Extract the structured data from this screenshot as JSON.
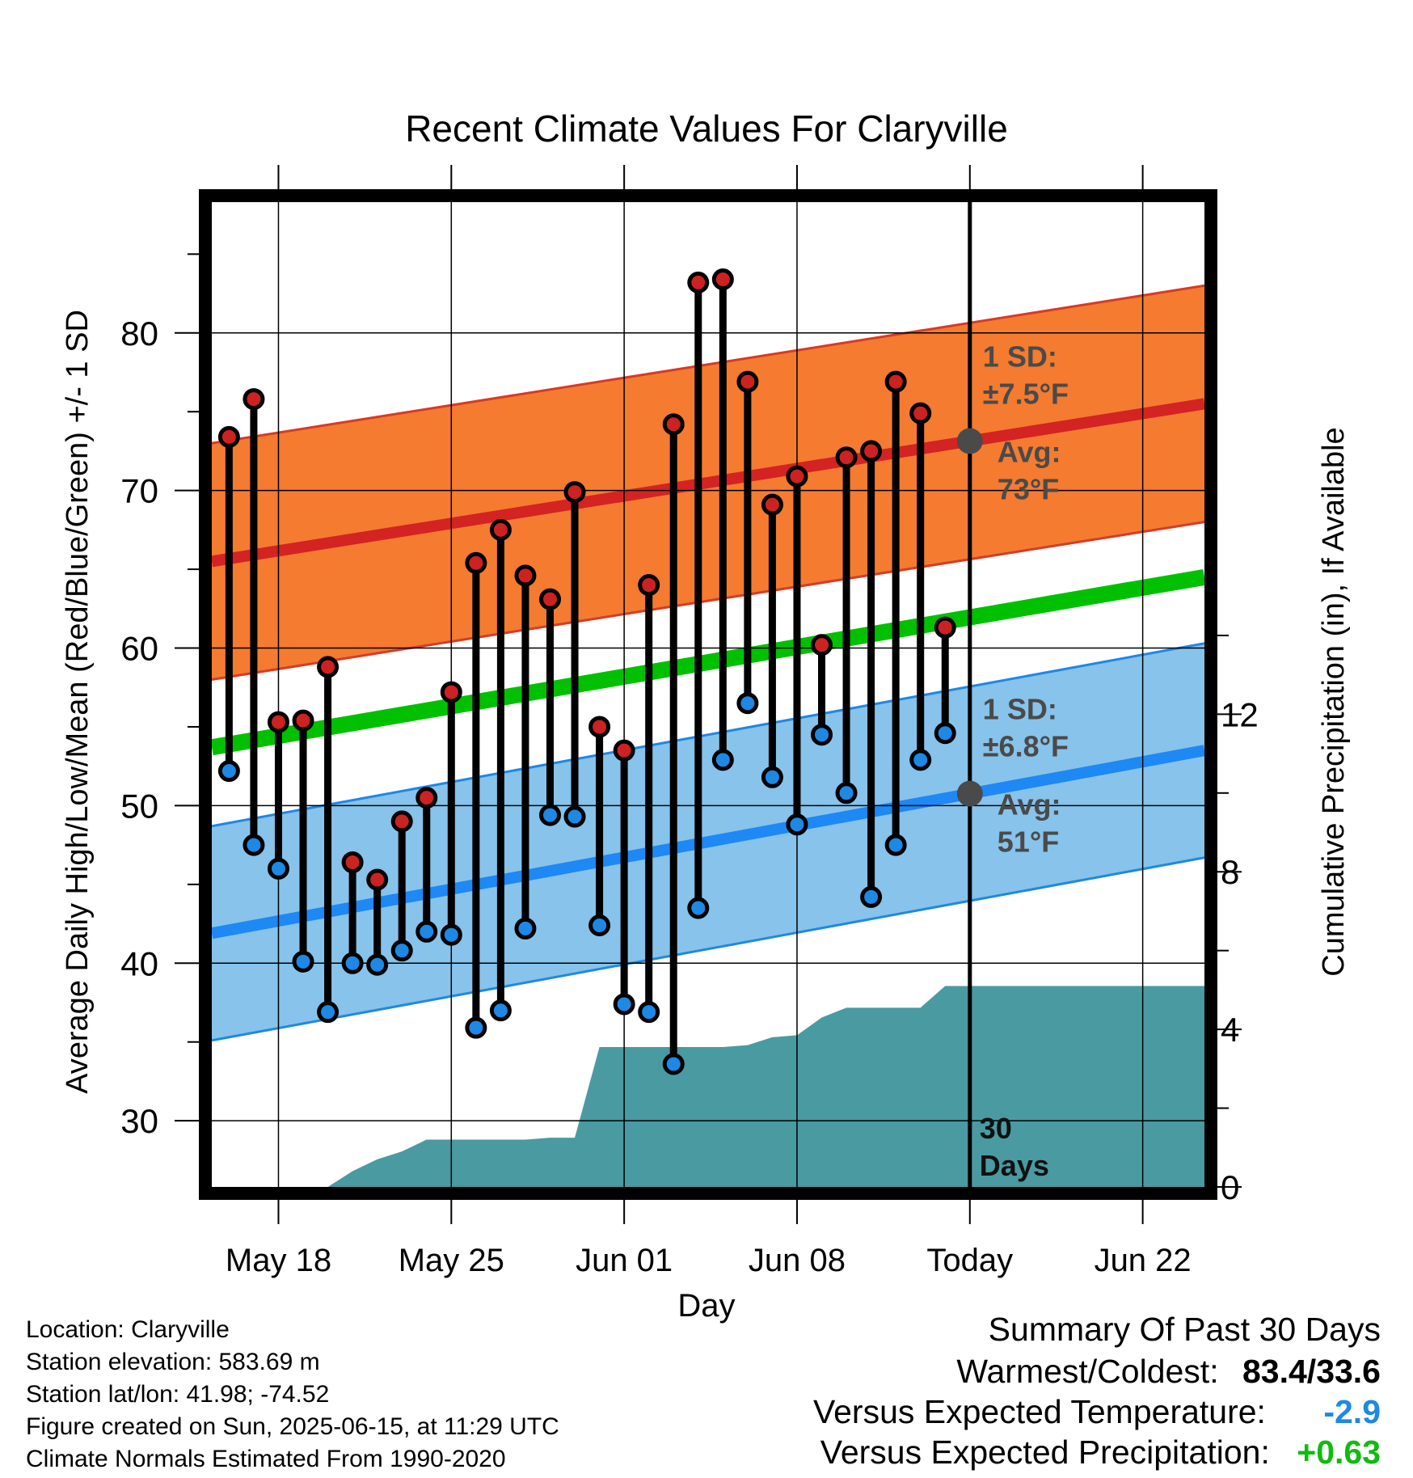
{
  "chart_data": {
    "type": "line",
    "title": "Recent Climate Values For Claryville",
    "xlabel": "Day",
    "ylabel": "Average Daily High/Low/Mean (Red/Blue/Green) +/- 1 SD",
    "y2label": "Cumulative Precipitation (in), If Available",
    "x_start": "May 15",
    "x_tick_labels": [
      "May 18",
      "May 25",
      "Jun 01",
      "Jun 08",
      "Today",
      "Jun 22"
    ],
    "x_tick_days": [
      3,
      10,
      17,
      24,
      31,
      38
    ],
    "xlim_days": [
      0.3,
      40.5
    ],
    "ylim": [
      25.8,
      88.3
    ],
    "yticks": [
      30,
      40,
      50,
      60,
      70,
      80
    ],
    "y2lim": [
      0,
      25
    ],
    "y2ticks": [
      0,
      4,
      8,
      12
    ],
    "grid": true,
    "today_day": 31,
    "today_label": "30 Days",
    "days": [
      1,
      2,
      3,
      4,
      5,
      6,
      7,
      8,
      9,
      10,
      11,
      12,
      13,
      14,
      15,
      16,
      17,
      18,
      19,
      20,
      21,
      22,
      23,
      24,
      25,
      26,
      27,
      28,
      29,
      30
    ],
    "series": [
      {
        "name": "High",
        "color": "#cc2222",
        "values": [
          73.4,
          75.8,
          55.3,
          55.4,
          58.8,
          46.4,
          45.3,
          49.0,
          50.5,
          57.2,
          65.4,
          67.5,
          64.6,
          63.1,
          69.9,
          55.0,
          53.5,
          64.0,
          74.2,
          83.2,
          83.4,
          76.9,
          69.1,
          70.9,
          60.2,
          72.1,
          72.5,
          76.9,
          74.9,
          61.3
        ]
      },
      {
        "name": "Low",
        "color": "#1e88e5",
        "values": [
          52.2,
          47.5,
          46.0,
          40.1,
          36.9,
          40.0,
          39.9,
          40.8,
          42.0,
          41.8,
          35.9,
          37.0,
          42.2,
          49.4,
          49.3,
          42.4,
          37.4,
          36.9,
          33.6,
          43.5,
          52.9,
          56.5,
          51.8,
          48.8,
          54.5,
          50.8,
          44.2,
          47.5,
          52.9,
          54.6
        ]
      }
    ],
    "normals": {
      "high_mean": [
        65.5,
        75.5
      ],
      "high_sd": 7.5,
      "low_mean": [
        41.9,
        53.5
      ],
      "low_sd": 6.8,
      "mean": [
        53.7,
        64.5
      ],
      "high_color": "#f47b30",
      "low_color": "#87c3ea",
      "mean_color": "#00c000"
    },
    "precip_cumulative": [
      [
        5,
        0.0
      ],
      [
        6,
        0.4
      ],
      [
        7,
        0.7
      ],
      [
        8,
        0.9
      ],
      [
        9,
        1.2
      ],
      [
        10,
        1.2
      ],
      [
        11,
        1.2
      ],
      [
        12,
        1.2
      ],
      [
        13,
        1.2
      ],
      [
        14,
        1.25
      ],
      [
        15,
        1.25
      ],
      [
        16,
        3.55
      ],
      [
        17,
        3.55
      ],
      [
        18,
        3.55
      ],
      [
        19,
        3.55
      ],
      [
        20,
        3.55
      ],
      [
        21,
        3.55
      ],
      [
        22,
        3.6
      ],
      [
        23,
        3.8
      ],
      [
        24,
        3.85
      ],
      [
        25,
        4.3
      ],
      [
        26,
        4.55
      ],
      [
        27,
        4.55
      ],
      [
        28,
        4.55
      ],
      [
        29,
        4.55
      ],
      [
        30,
        5.1
      ],
      [
        31,
        5.1
      ],
      [
        40.5,
        5.1
      ]
    ],
    "precip_color": "#4a9aa2",
    "annotations": [
      {
        "text": "1 SD:",
        "line2": "±7.5°F"
      },
      {
        "text": "Avg:",
        "line2": "73°F"
      },
      {
        "text": "1 SD:",
        "line2": "±6.8°F"
      },
      {
        "text": "Avg:",
        "line2": "51°F"
      }
    ]
  },
  "meta": {
    "location": "Location: Claryville",
    "elevation": "Station elevation: 583.69 m",
    "latlon": "Station lat/lon: 41.98; -74.52",
    "created": "Figure created on Sun, 2025-06-15, at 11:29 UTC",
    "normals": "Climate Normals Estimated From 1990-2020"
  },
  "summary": {
    "heading": "Summary Of Past 30 Days",
    "warm_label": "Warmest/Coldest:",
    "warm_value": "83.4/33.6",
    "temp_label": "Versus Expected Temperature:",
    "temp_value": "-2.9",
    "temp_color": "#1e88e5",
    "precip_label": "Versus Expected Precipitation:",
    "precip_value": "+0.63",
    "precip_color": "#11bb11"
  }
}
